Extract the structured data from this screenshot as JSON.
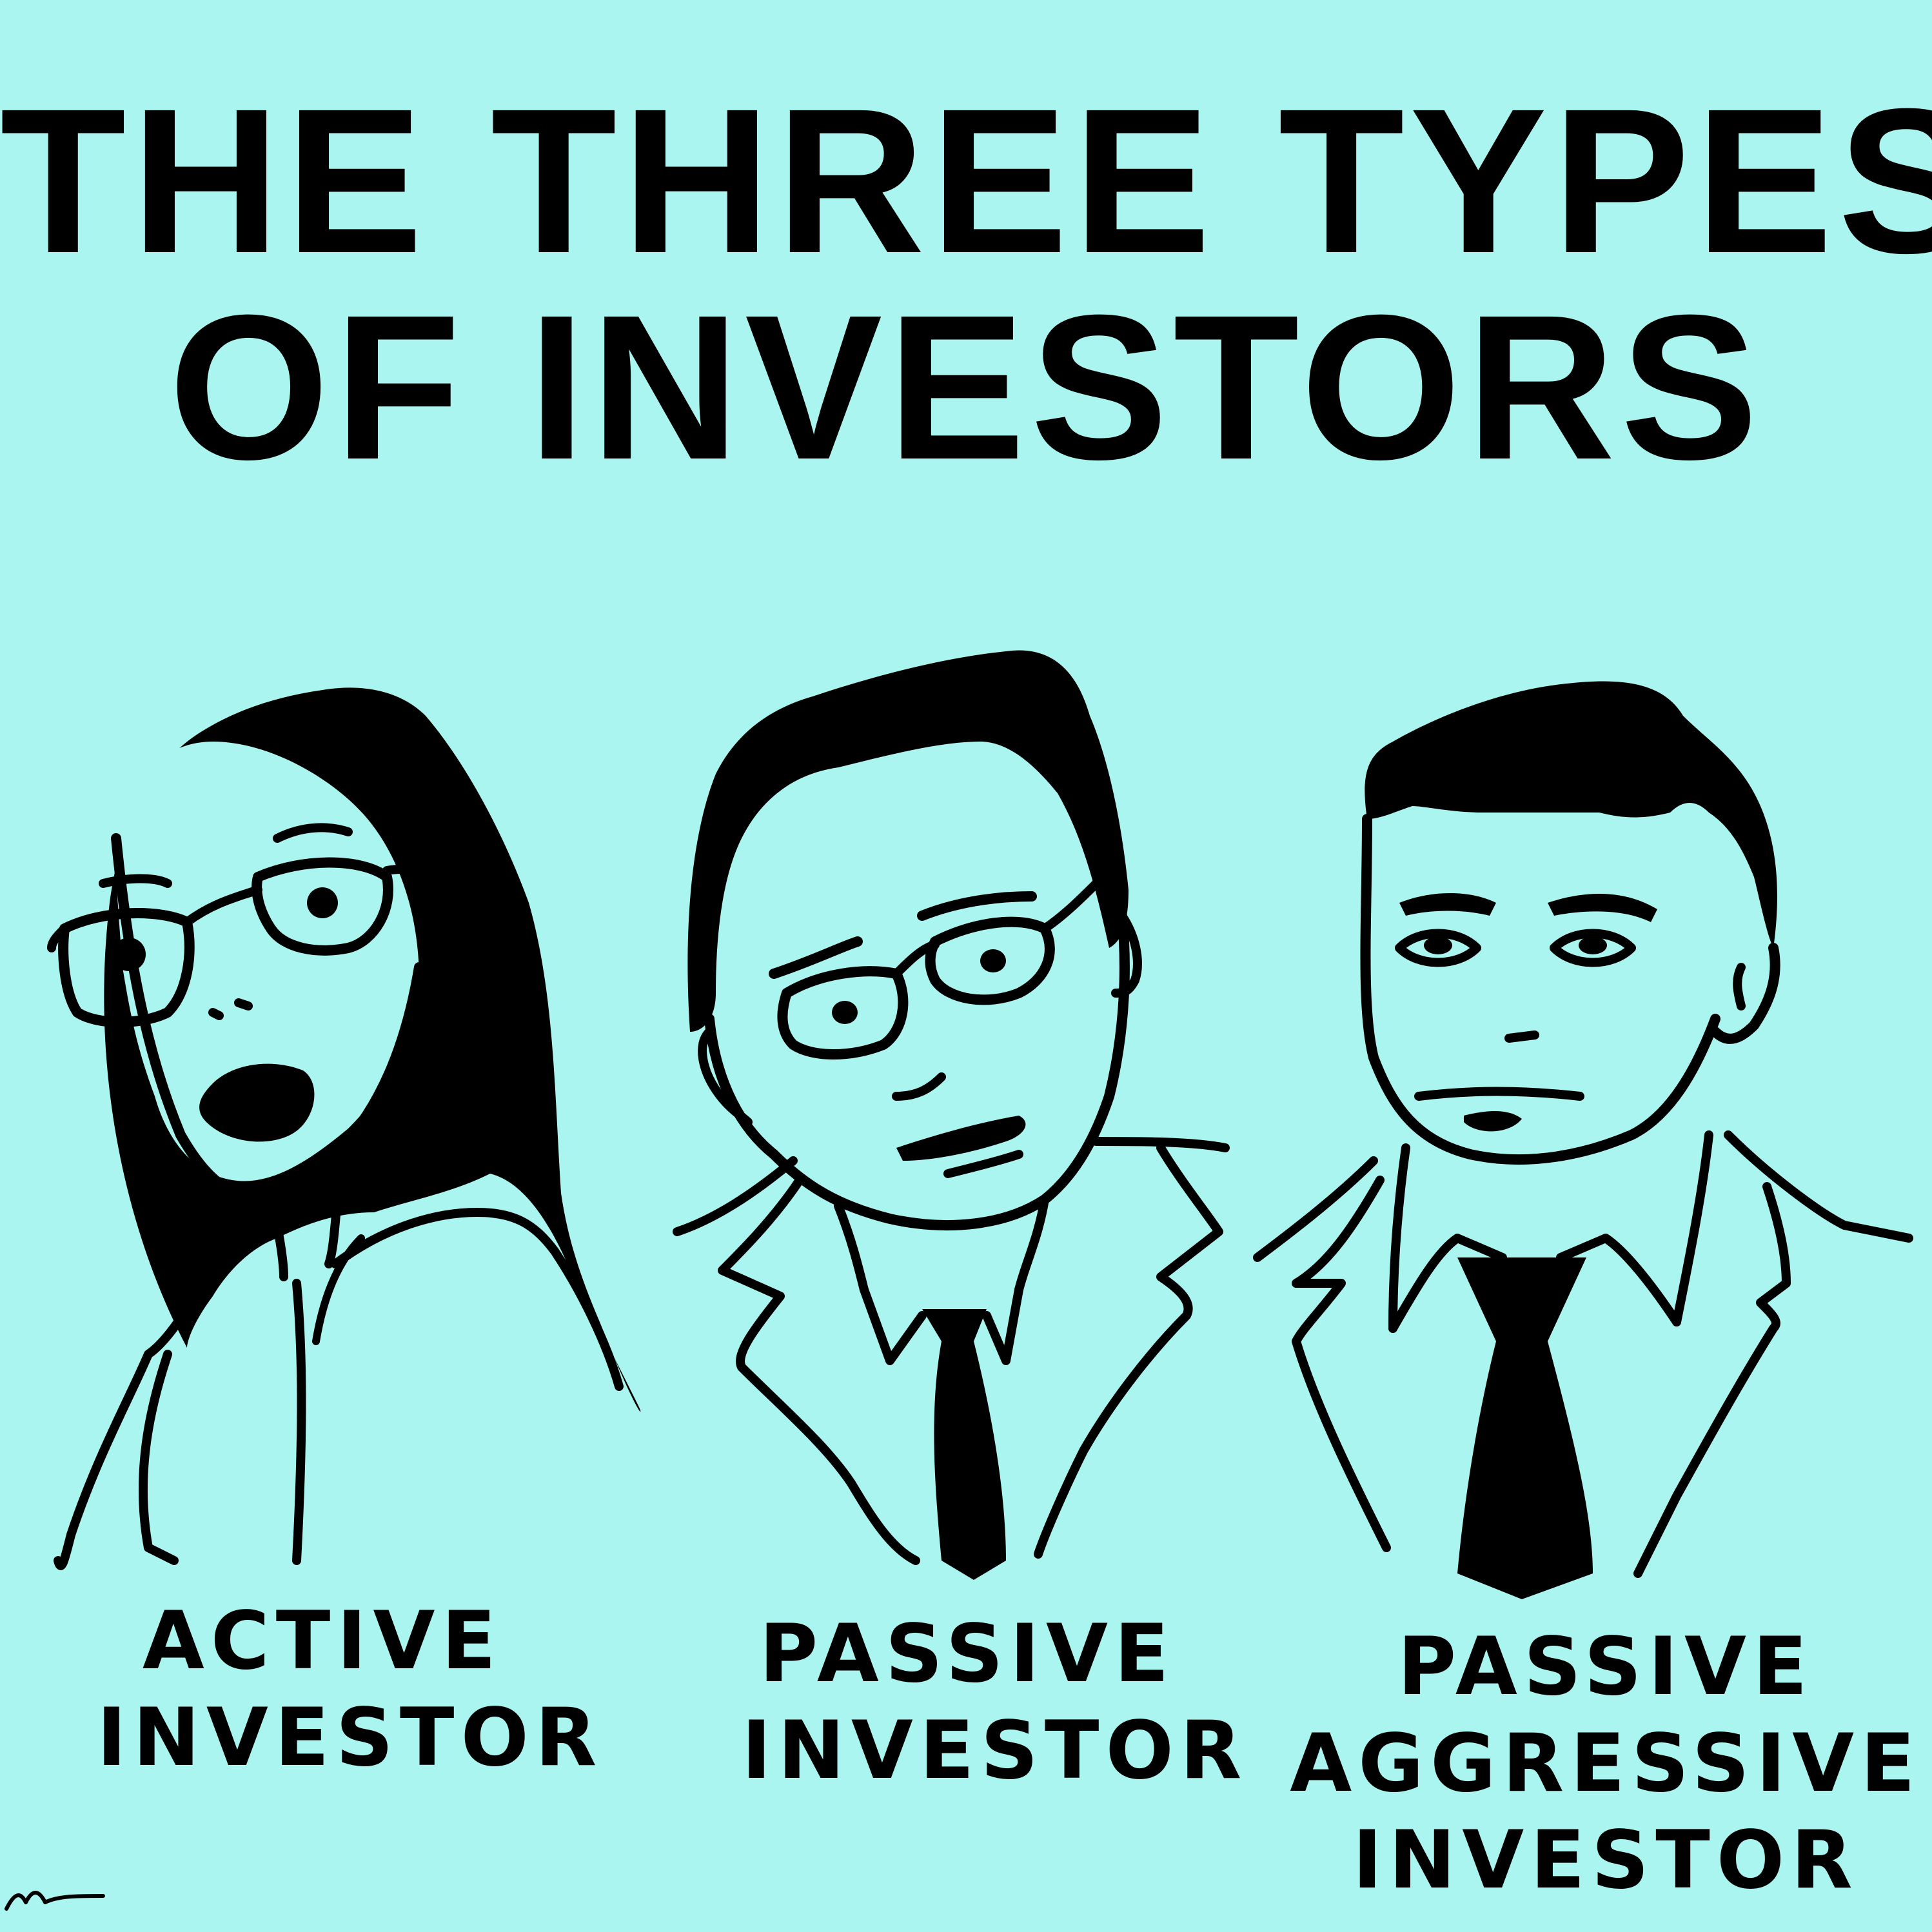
{
  "colors": {
    "background": "#aaf5ef",
    "ink": "#000000"
  },
  "title": {
    "line1": "THE THREE TYPES",
    "line2": "OF INVESTORS"
  },
  "portraits": [
    {
      "caption_lines": [
        "ACTIVE",
        "INVESTOR"
      ]
    },
    {
      "caption_lines": [
        "PASSIVE",
        "INVESTOR"
      ]
    },
    {
      "caption_lines": [
        "PASSIVE",
        "AGGRESSIVE",
        "INVESTOR"
      ]
    }
  ]
}
